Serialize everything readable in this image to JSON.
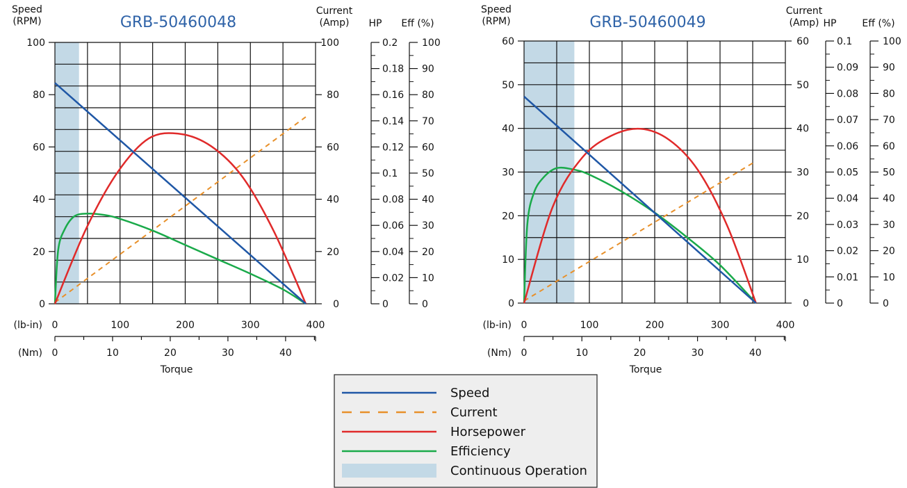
{
  "legend": {
    "items": [
      {
        "key": "speed",
        "label": "Speed",
        "color": "#1f57a6",
        "style": "solid"
      },
      {
        "key": "current",
        "label": "Current",
        "color": "#e8902a",
        "style": "dashed"
      },
      {
        "key": "horsepower",
        "label": "Horsepower",
        "color": "#e02a2a",
        "style": "solid"
      },
      {
        "key": "efficiency",
        "label": "Efficiency",
        "color": "#1aaa4a",
        "style": "solid"
      },
      {
        "key": "continuous",
        "label": "Continuous Operation",
        "color": "#c3d9e6",
        "style": "area"
      }
    ]
  },
  "chart_data": [
    {
      "type": "line",
      "title": "GRB-50460048",
      "axes": {
        "speed_label": [
          "Speed",
          "(RPM)"
        ],
        "current_label": [
          "Current",
          "(Amp)"
        ],
        "hp_label": "HP",
        "eff_label": "Eff (%)",
        "x_label": "Torque",
        "lbin_label": "(lb-in)",
        "nm_label": "(Nm)"
      },
      "speed_range": [
        0,
        100
      ],
      "speed_ticks": [
        0,
        20,
        40,
        60,
        80,
        100
      ],
      "current_range": [
        0,
        100
      ],
      "current_ticks": [
        0,
        20,
        40,
        60,
        80,
        100
      ],
      "hp_range": [
        0,
        0.2
      ],
      "hp_ticks": [
        "0",
        "0.02",
        "0.04",
        "0.06",
        "0.08",
        "0.1",
        "0.12",
        "0.14",
        "0.16",
        "0.18",
        "0.2"
      ],
      "eff_range": [
        0,
        100
      ],
      "eff_ticks": [
        "0",
        "10",
        "20",
        "30",
        "40",
        "50",
        "60",
        "70",
        "80",
        "90",
        "100"
      ],
      "lbin_range": [
        0,
        400
      ],
      "lbin_ticks": [
        0,
        100,
        200,
        300,
        400
      ],
      "nm_ticks": [
        0,
        10,
        20,
        30,
        40
      ],
      "grid": true,
      "stall_torque_lbin": 385,
      "speed": {
        "x": [
          0,
          385
        ],
        "y": [
          84.5,
          0
        ]
      },
      "current": {
        "x": [
          0,
          385
        ],
        "y": [
          0.5,
          71.5
        ]
      },
      "horsepower": {
        "x": [
          0,
          48,
          96,
          144,
          192,
          240,
          288,
          336,
          385
        ],
        "y": [
          0,
          0.0575,
          0.1005,
          0.1265,
          0.13,
          0.1205,
          0.097,
          0.0555,
          0
        ]
      },
      "efficiency": {
        "x": [
          0,
          5,
          15,
          30,
          50,
          75,
          100,
          150,
          200,
          250,
          300,
          350,
          385
        ],
        "y": [
          0,
          20.5,
          28.5,
          33.5,
          34.5,
          34,
          32.5,
          28,
          22.5,
          17,
          11.5,
          5.5,
          0
        ]
      },
      "continuous_max_lbin": 37
    },
    {
      "type": "line",
      "title": "GRB-50460049",
      "axes": {
        "speed_label": [
          "Speed",
          "(RPM)"
        ],
        "current_label": [
          "Current",
          "(Amp)"
        ],
        "hp_label": "HP",
        "eff_label": "Eff (%)",
        "x_label": "Torque",
        "lbin_label": "(lb-in)",
        "nm_label": "(Nm)"
      },
      "speed_range": [
        0,
        60
      ],
      "speed_ticks": [
        0,
        10,
        20,
        30,
        40,
        50,
        60
      ],
      "current_range": [
        0,
        60
      ],
      "current_ticks": [
        0,
        10,
        20,
        30,
        40,
        50,
        60
      ],
      "hp_range": [
        0,
        0.1
      ],
      "hp_ticks": [
        "0",
        "0.01",
        "0.02",
        "0.03",
        "0.04",
        "0.05",
        "0.06",
        "0.07",
        "0.08",
        "0.09",
        "0.1"
      ],
      "eff_range": [
        0,
        100
      ],
      "eff_ticks": [
        "0",
        "10",
        "20",
        "30",
        "40",
        "50",
        "60",
        "70",
        "80",
        "90",
        "100"
      ],
      "lbin_range": [
        0,
        400
      ],
      "lbin_ticks": [
        0,
        100,
        200,
        300,
        400
      ],
      "nm_ticks": [
        0,
        10,
        20,
        30,
        40
      ],
      "grid": true,
      "stall_torque_lbin": 355,
      "speed": {
        "x": [
          0,
          355
        ],
        "y": [
          47.3,
          0
        ]
      },
      "current": {
        "x": [
          0,
          355
        ],
        "y": [
          0.5,
          32.5
        ]
      },
      "horsepower": {
        "x": [
          0,
          44,
          89,
          133,
          178,
          222,
          266,
          311,
          355
        ],
        "y": [
          0,
          0.0368,
          0.0555,
          0.0638,
          0.0665,
          0.0623,
          0.0508,
          0.0295,
          0
        ]
      },
      "efficiency": {
        "x": [
          0,
          5,
          15,
          30,
          50,
          75,
          100,
          150,
          200,
          250,
          300,
          355
        ],
        "y": [
          0,
          30,
          42,
          48,
          51.5,
          51,
          49,
          42.5,
          34.5,
          25,
          14.5,
          0
        ]
      },
      "continuous_max_lbin": 77
    }
  ]
}
